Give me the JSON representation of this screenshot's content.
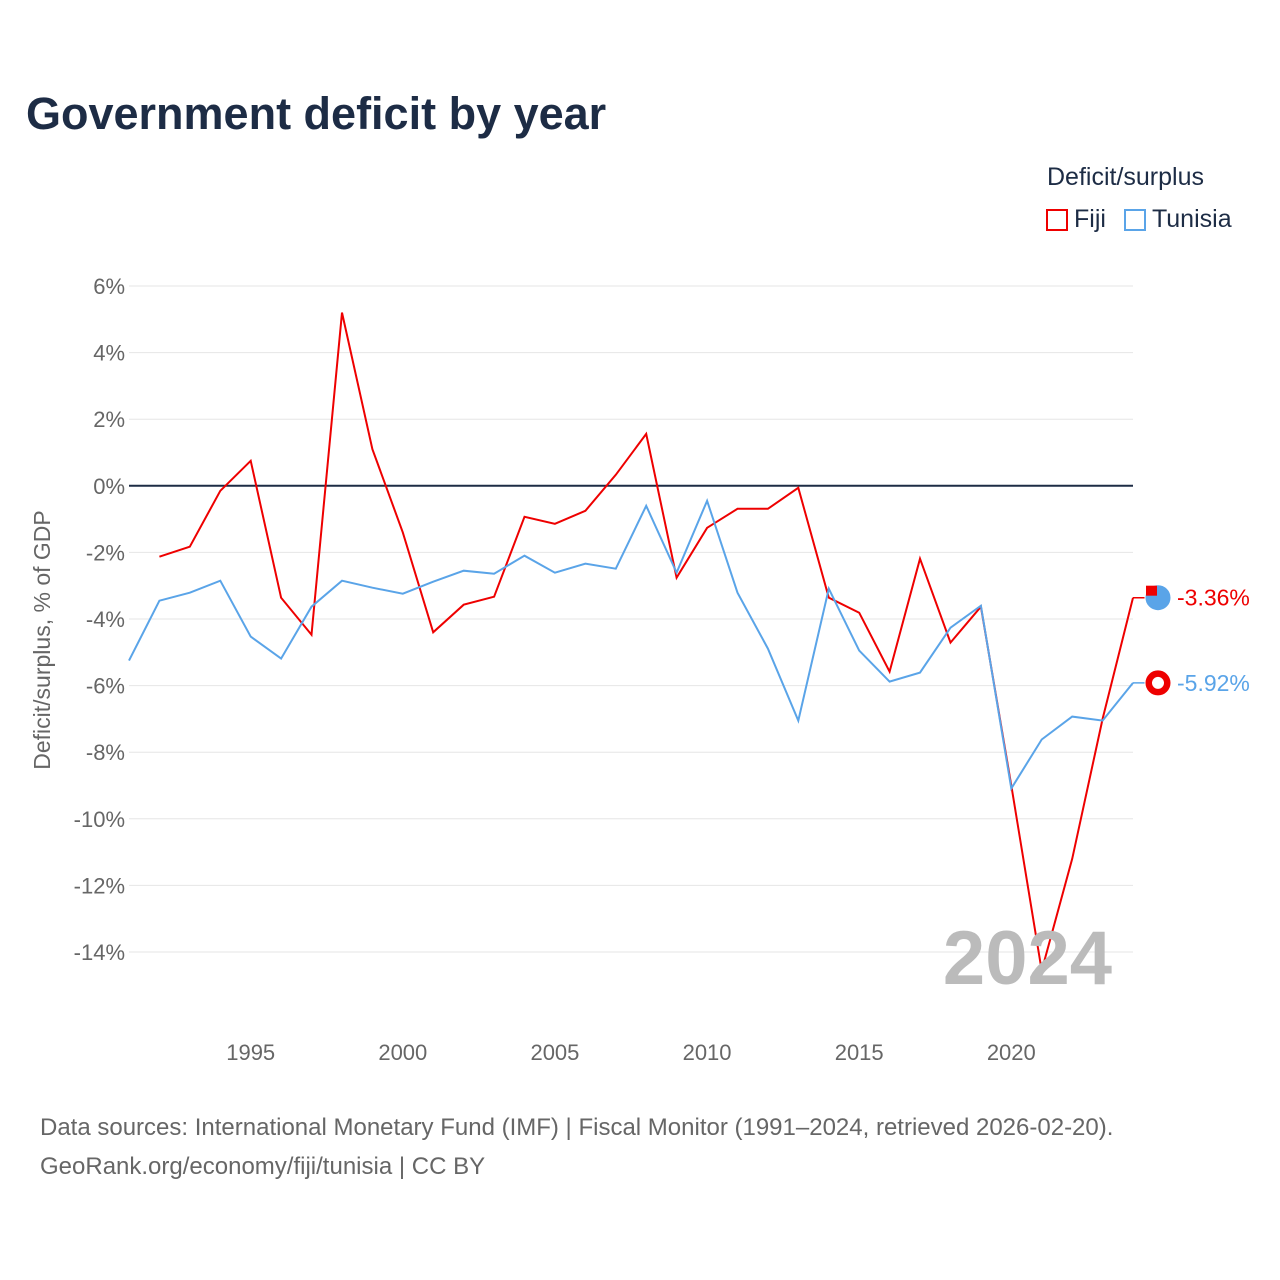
{
  "title": "Government deficit by year",
  "legend": {
    "title": "Deficit/surplus",
    "items": [
      {
        "name": "Fiji",
        "color": "#ee0000"
      },
      {
        "name": "Tunisia",
        "color": "#5aa4e8"
      }
    ]
  },
  "year_watermark": "2024",
  "source_line1": "Data sources: International Monetary Fund (IMF) | Fiscal Monitor (1991–2024, retrieved 2026-02-20).",
  "source_line2": "GeoRank.org/economy/fiji/tunisia | CC BY",
  "chart_data": {
    "type": "line",
    "title": "Government deficit by year",
    "xlabel": "",
    "ylabel": "Deficit/surplus, % of GDP",
    "xlim": [
      1991,
      2024
    ],
    "ylim": [
      -14,
      6
    ],
    "x_ticks": [
      1995,
      2000,
      2005,
      2010,
      2015,
      2020
    ],
    "y_ticks": [
      6,
      4,
      2,
      0,
      -2,
      -4,
      -6,
      -8,
      -10,
      -12,
      -14
    ],
    "y_tick_labels": [
      "6%",
      "4%",
      "2%",
      "0%",
      "-2%",
      "-4%",
      "-6%",
      "-8%",
      "-10%",
      "-12%",
      "-14%"
    ],
    "grid": true,
    "legend_position": "top-right",
    "series": [
      {
        "name": "Fiji",
        "color": "#ee0000",
        "end_label": "-3.36%",
        "x": [
          1992,
          1993,
          1994,
          1995,
          1996,
          1997,
          1998,
          1999,
          2000,
          2001,
          2002,
          2003,
          2004,
          2005,
          2006,
          2007,
          2008,
          2009,
          2010,
          2011,
          2012,
          2013,
          2014,
          2015,
          2016,
          2017,
          2018,
          2019,
          2020,
          2021,
          2022,
          2023,
          2024
        ],
        "values": [
          -2.13,
          -1.83,
          -0.15,
          0.75,
          -3.36,
          -4.47,
          5.2,
          1.1,
          -1.4,
          -4.4,
          -3.57,
          -3.33,
          -0.93,
          -1.14,
          -0.75,
          0.33,
          1.56,
          -2.76,
          -1.26,
          -0.69,
          -0.69,
          -0.06,
          -3.36,
          -3.81,
          -5.58,
          -2.19,
          -4.71,
          -3.63,
          -9.0,
          -14.56,
          -11.2,
          -7.0,
          -3.36
        ]
      },
      {
        "name": "Tunisia",
        "color": "#5aa4e8",
        "end_label": "-5.92%",
        "x": [
          1991,
          1992,
          1993,
          1994,
          1995,
          1996,
          1997,
          1998,
          1999,
          2000,
          2001,
          2002,
          2003,
          2004,
          2005,
          2006,
          2007,
          2008,
          2009,
          2010,
          2011,
          2012,
          2013,
          2014,
          2015,
          2016,
          2017,
          2018,
          2019,
          2020,
          2021,
          2022,
          2023,
          2024
        ],
        "values": [
          -5.25,
          -3.45,
          -3.21,
          -2.85,
          -4.53,
          -5.19,
          -3.63,
          -2.85,
          -3.06,
          -3.24,
          -2.88,
          -2.55,
          -2.64,
          -2.1,
          -2.61,
          -2.34,
          -2.49,
          -0.6,
          -2.61,
          -0.45,
          -3.21,
          -4.89,
          -7.05,
          -3.09,
          -4.95,
          -5.88,
          -5.61,
          -4.26,
          -3.6,
          -9.09,
          -7.62,
          -6.93,
          -7.05,
          -5.92
        ]
      }
    ]
  }
}
